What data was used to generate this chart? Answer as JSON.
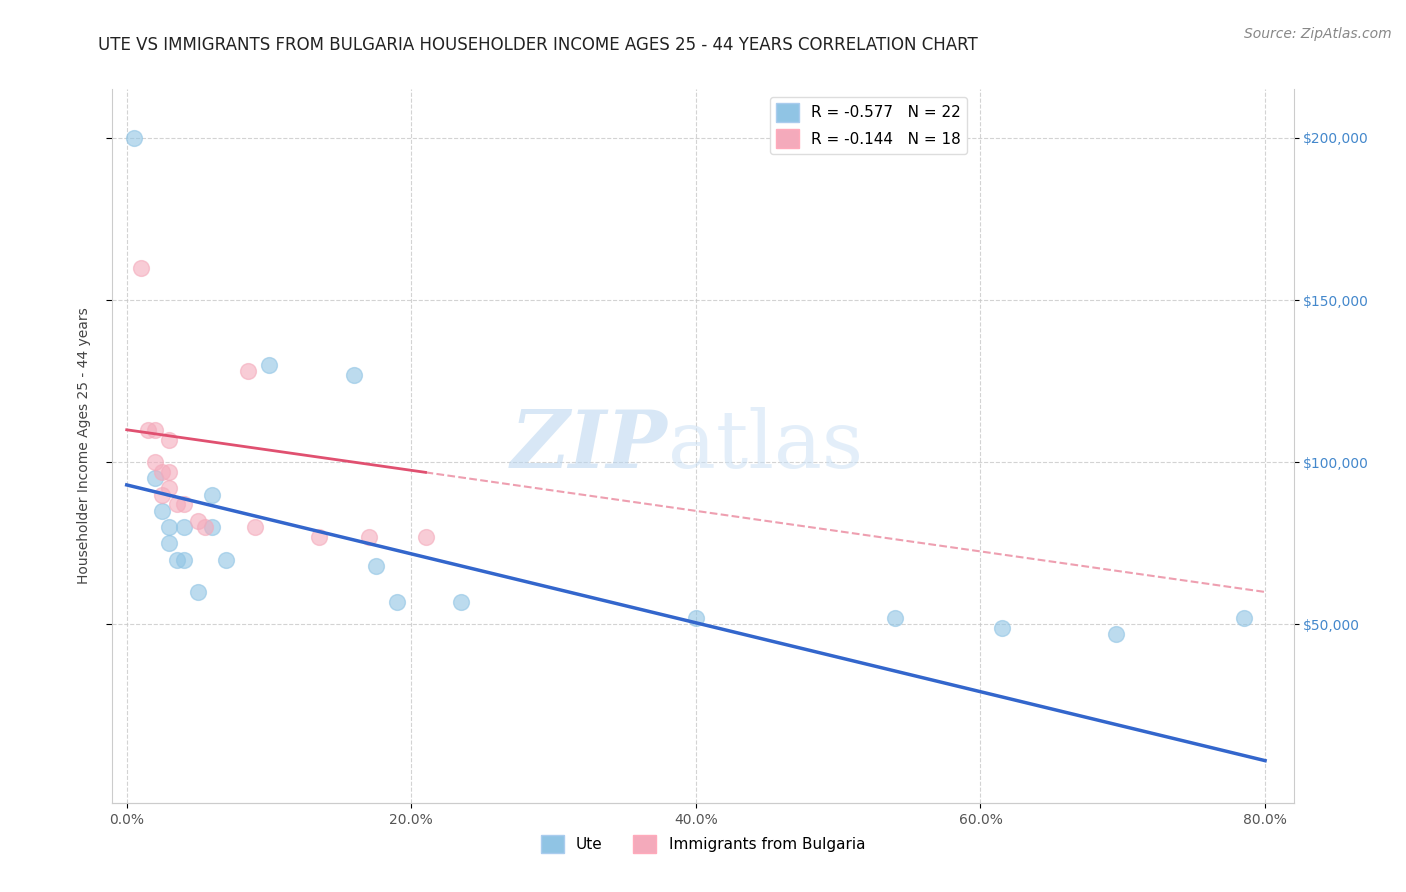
{
  "title": "UTE VS IMMIGRANTS FROM BULGARIA HOUSEHOLDER INCOME AGES 25 - 44 YEARS CORRELATION CHART",
  "source": "Source: ZipAtlas.com",
  "ylabel": "Householder Income Ages 25 - 44 years",
  "xlim": [
    -0.01,
    0.82
  ],
  "ylim": [
    -5000,
    215000
  ],
  "xtick_labels": [
    "0.0%",
    "20.0%",
    "40.0%",
    "60.0%",
    "80.0%"
  ],
  "xtick_vals": [
    0.0,
    0.2,
    0.4,
    0.6,
    0.8
  ],
  "ytick_vals": [
    50000,
    100000,
    150000,
    200000
  ],
  "ytick_labels_left": [
    "",
    "",
    "",
    ""
  ],
  "ytick_labels_right": [
    "$50,000",
    "$100,000",
    "$150,000",
    "$200,000"
  ],
  "ute_scatter_x": [
    0.005,
    0.02,
    0.025,
    0.03,
    0.03,
    0.035,
    0.04,
    0.04,
    0.05,
    0.06,
    0.06,
    0.07,
    0.1,
    0.16,
    0.175,
    0.19,
    0.235,
    0.4,
    0.54,
    0.615,
    0.695,
    0.785
  ],
  "ute_scatter_y": [
    200000,
    95000,
    85000,
    80000,
    75000,
    70000,
    80000,
    70000,
    60000,
    90000,
    80000,
    70000,
    130000,
    127000,
    68000,
    57000,
    57000,
    52000,
    52000,
    49000,
    47000,
    52000
  ],
  "bulgaria_scatter_x": [
    0.01,
    0.015,
    0.02,
    0.02,
    0.025,
    0.025,
    0.03,
    0.03,
    0.03,
    0.035,
    0.04,
    0.05,
    0.055,
    0.085,
    0.09,
    0.135,
    0.17,
    0.21
  ],
  "bulgaria_scatter_y": [
    160000,
    110000,
    110000,
    100000,
    97000,
    90000,
    107000,
    97000,
    92000,
    87000,
    87000,
    82000,
    80000,
    128000,
    80000,
    77000,
    77000,
    77000
  ],
  "ute_color": "#90c4e4",
  "bulgaria_color": "#f4aabb",
  "ute_line_color": "#3366cc",
  "bulgaria_line_color": "#e05070",
  "background_color": "#ffffff",
  "grid_color": "#c8c8c8",
  "watermark_zip": "ZIP",
  "watermark_atlas": "atlas",
  "title_fontsize": 12,
  "label_fontsize": 10,
  "tick_fontsize": 10,
  "source_fontsize": 10,
  "legend_label1": "R = -0.577   N = 22",
  "legend_label2": "R = -0.144   N = 18",
  "legend_group1": "Ute",
  "legend_group2": "Immigrants from Bulgaria",
  "right_tick_color": "#4488cc"
}
